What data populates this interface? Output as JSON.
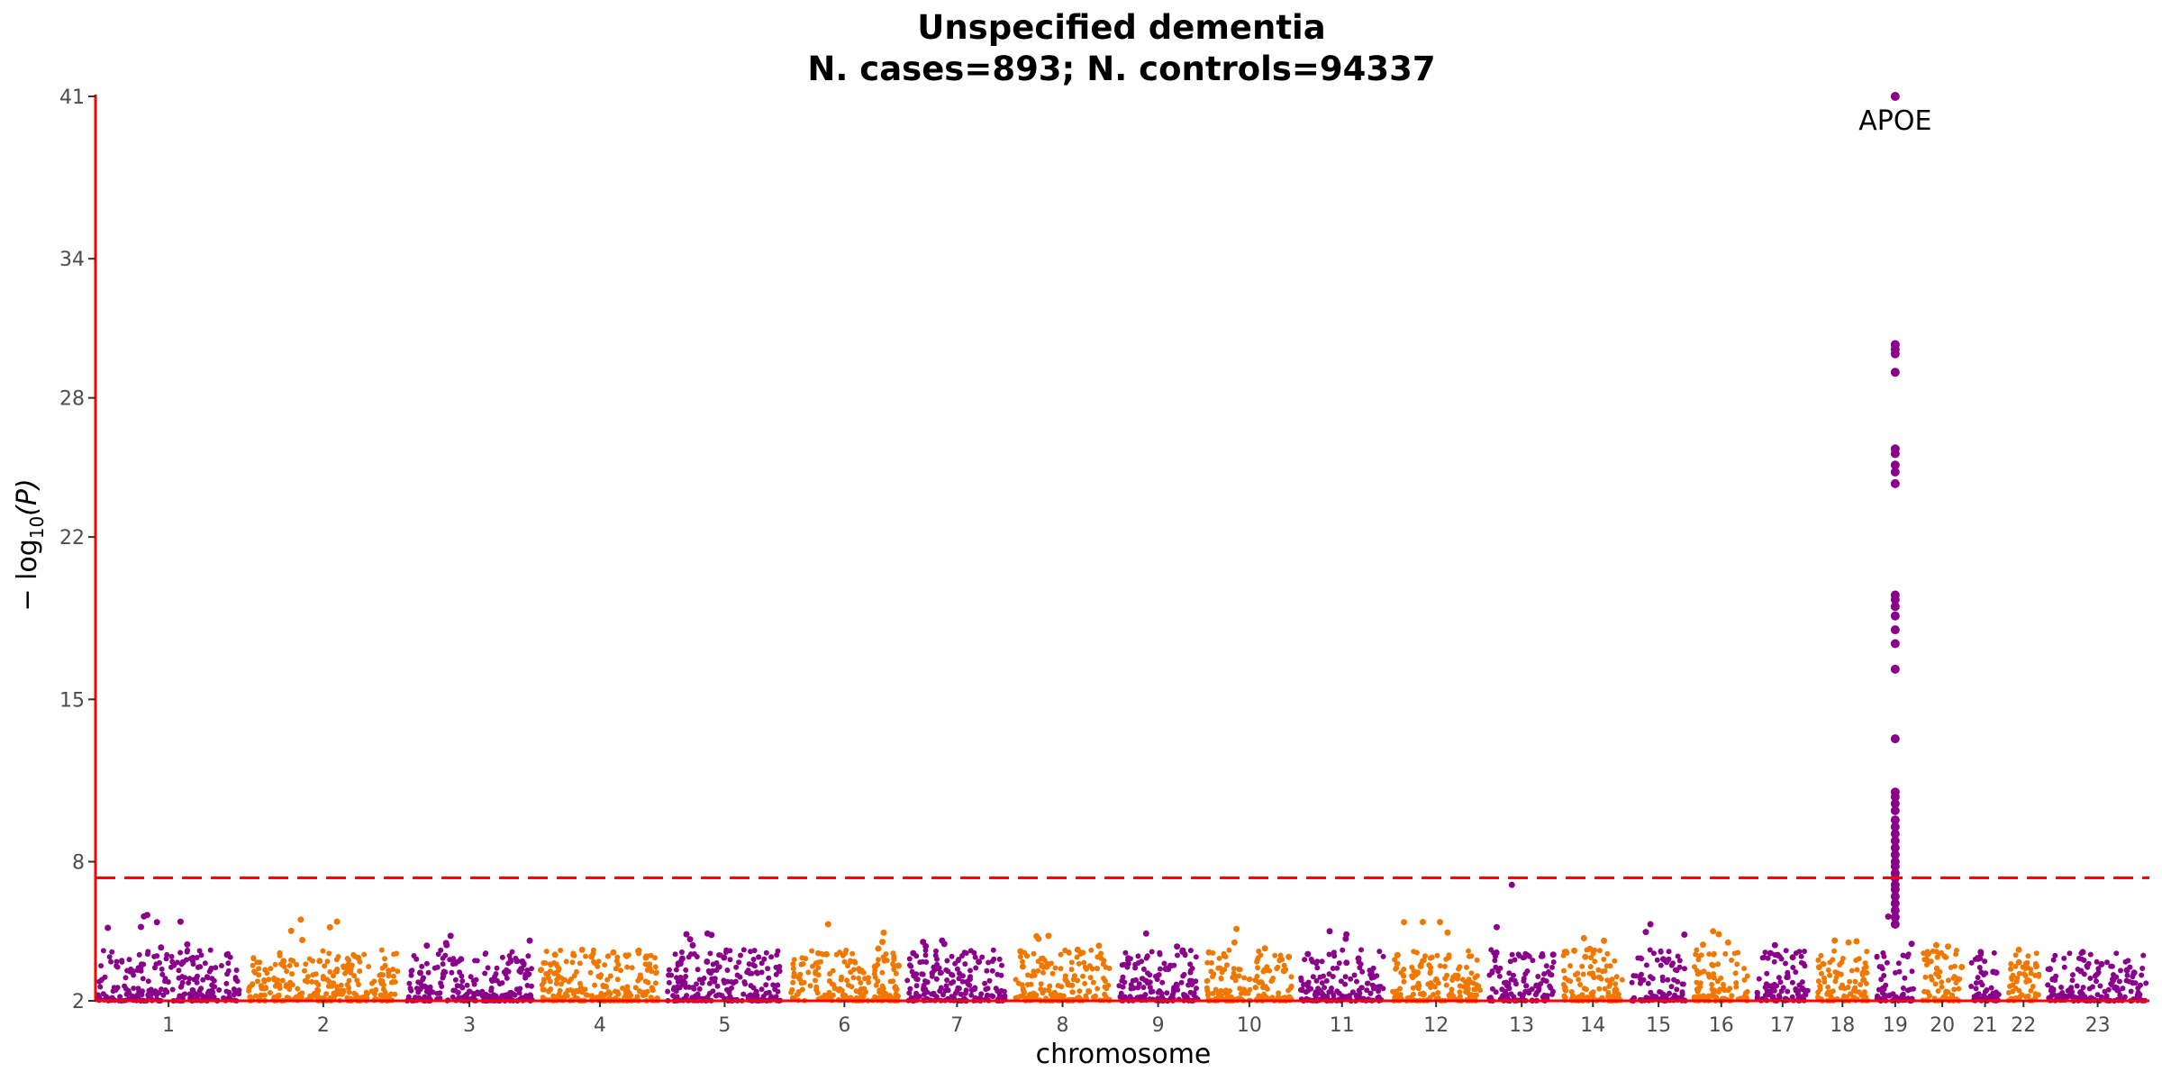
{
  "chart_data": {
    "type": "scatter",
    "subtype": "manhattan",
    "title": "Unspecified dementia",
    "subtitle": "N. cases=893; N. controls=94337",
    "xlabel": "chromosome",
    "ylabel": "− log10(P)",
    "ylim": [
      2,
      41
    ],
    "yticks": [
      2,
      8,
      15,
      22,
      28,
      34,
      41
    ],
    "significance_threshold": 7.3,
    "colors": {
      "odd": "#8B008B",
      "even": "#F07800",
      "threshold_line": "#FF0000",
      "axis": "#FF0000"
    },
    "grid": false,
    "legend": "none",
    "chromosomes": [
      {
        "label": "1",
        "peak": 5.7
      },
      {
        "label": "2",
        "peak": 5.5
      },
      {
        "label": "3",
        "peak": 4.8
      },
      {
        "label": "4",
        "peak": 4.2
      },
      {
        "label": "5",
        "peak": 4.9
      },
      {
        "label": "6",
        "peak": 5.3
      },
      {
        "label": "7",
        "peak": 4.6
      },
      {
        "label": "8",
        "peak": 4.8
      },
      {
        "label": "9",
        "peak": 4.9
      },
      {
        "label": "10",
        "peak": 5.1
      },
      {
        "label": "11",
        "peak": 5.0
      },
      {
        "label": "12",
        "peak": 5.4
      },
      {
        "label": "13",
        "peak": 7.0
      },
      {
        "label": "14",
        "peak": 4.7
      },
      {
        "label": "15",
        "peak": 5.3
      },
      {
        "label": "16",
        "peak": 5.0
      },
      {
        "label": "17",
        "peak": 4.4
      },
      {
        "label": "18",
        "peak": 4.6
      },
      {
        "label": "19",
        "peak": 41
      },
      {
        "label": "20",
        "peak": 4.4
      },
      {
        "label": "21",
        "peak": 4.1
      },
      {
        "label": "22",
        "peak": 4.2
      },
      {
        "label": "23",
        "peak": 4.1
      }
    ],
    "chr19_hits": [
      41,
      30.3,
      30.1,
      29.9,
      29.1,
      25.8,
      25.6,
      25.1,
      24.8,
      24.3,
      19.5,
      19.3,
      19.0,
      18.6,
      18.0,
      17.4,
      16.3,
      13.3,
      11.0,
      10.8,
      10.5,
      10.2,
      9.8,
      9.5,
      9.2,
      8.9,
      8.6,
      8.3,
      8.0,
      7.8,
      7.5,
      7.3,
      7.0,
      6.8,
      6.5,
      6.2,
      5.9,
      5.6,
      5.3
    ],
    "annotations": [
      {
        "text": "APOE",
        "chromosome": "19",
        "y": 41
      }
    ]
  }
}
